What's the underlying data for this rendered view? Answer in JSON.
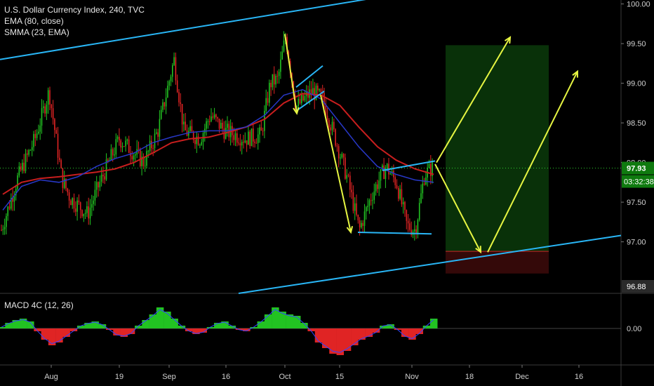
{
  "legend": {
    "symbol_line": "U.S. Dollar Currency Index, 240, TVC",
    "ema_line": "EMA (80, close)",
    "smma_line": "SMMA (23, EMA)"
  },
  "macd_legend": "MACD 4C (12, 26)",
  "colors": {
    "background": "#000000",
    "bull_candle": "#22c322",
    "bear_candle": "#e02424",
    "ema": "#c81e1e",
    "smma": "#2838c8",
    "channel": "#29b6f6",
    "projection": "#e6f542",
    "profit_zone": "#0b3a0b",
    "stop_zone": "#3a0a0a",
    "price_tag": "#0f7a0f",
    "stop_tag": "#2a2a2a"
  },
  "chart_data": [
    {
      "type": "candlestick",
      "title": "U.S. Dollar Currency Index, 240, TVC",
      "x_tick_labels": [
        "Aug",
        "19",
        "Sep",
        "16",
        "Oct",
        "15",
        "Nov",
        "18",
        "Dec",
        "16"
      ],
      "y_tick_labels": [
        "100.00",
        "99.50",
        "99.00",
        "98.50",
        "98.00",
        "97.50",
        "97.00"
      ],
      "ylim": [
        96.35,
        100.05
      ],
      "last_price": "97.93",
      "countdown": "03:32:38",
      "stop_level": "96.88",
      "series": [
        {
          "name": "EMA (80, close)",
          "values": [
            97.6,
            97.75,
            97.8,
            97.82,
            97.85,
            97.88,
            97.92,
            98.0,
            98.12,
            98.25,
            98.3,
            98.32,
            98.38,
            98.45,
            98.55,
            98.75,
            98.87,
            98.85,
            98.72,
            98.45,
            98.2,
            98.03,
            97.92,
            97.85
          ]
        },
        {
          "name": "SMMA (23, EMA)",
          "values": [
            97.4,
            97.7,
            97.78,
            97.75,
            97.82,
            97.95,
            98.05,
            98.12,
            98.25,
            98.32,
            98.38,
            98.4,
            98.4,
            98.45,
            98.6,
            98.85,
            98.92,
            98.8,
            98.5,
            98.2,
            97.95,
            97.85,
            97.78,
            97.75
          ]
        }
      ],
      "drawings": {
        "channel_upper": [
          [
            0,
            99.3
          ],
          [
            550,
            100.1
          ]
        ],
        "channel_lower": [
          [
            340,
            96.35
          ],
          [
            885,
            97.08
          ]
        ],
        "projection_points": [
          "97.98",
          "96.85",
          "99.58",
          "96.85",
          "99.15"
        ]
      }
    },
    {
      "type": "bar",
      "title": "MACD 4C (12, 26)",
      "y_tick_labels": [
        "0.00"
      ],
      "values": [
        0.05,
        0.2,
        0.3,
        0.35,
        0.25,
        -0.1,
        -0.4,
        -0.6,
        -0.5,
        -0.3,
        -0.1,
        0.1,
        0.2,
        0.25,
        0.15,
        -0.05,
        -0.25,
        -0.3,
        -0.2,
        0.1,
        0.3,
        0.5,
        0.75,
        0.6,
        0.35,
        0.1,
        -0.1,
        -0.2,
        -0.15,
        0.05,
        0.2,
        0.25,
        0.1,
        -0.05,
        -0.1,
        0.05,
        0.25,
        0.5,
        0.75,
        0.6,
        0.5,
        0.45,
        0.2,
        -0.1,
        -0.5,
        -0.7,
        -0.9,
        -0.95,
        -0.8,
        -0.6,
        -0.4,
        -0.3,
        -0.15,
        0.1,
        0.15,
        -0.05,
        -0.3,
        -0.4,
        -0.2,
        0.1,
        0.35
      ]
    }
  ]
}
